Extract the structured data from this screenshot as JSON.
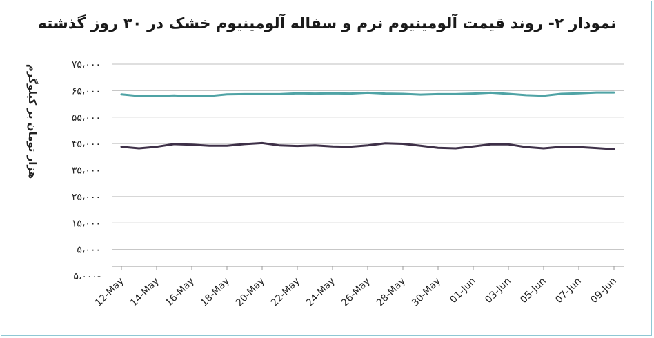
{
  "chart_data": {
    "type": "line",
    "title": "نمودار ۲- روند قیمت آلومینیوم نرم و سفاله آلومینیوم خشک در ۳۰ روز گذشته",
    "ylabel": "هزار تومان بر کیلوگرم",
    "xlabel": "",
    "ylim": [
      -5000,
      75000
    ],
    "y_ticks": [
      {
        "value": 75000,
        "label": "۷۵،۰۰۰"
      },
      {
        "value": 65000,
        "label": "۶۵،۰۰۰"
      },
      {
        "value": 55000,
        "label": "۵۵،۰۰۰"
      },
      {
        "value": 45000,
        "label": "۴۵،۰۰۰"
      },
      {
        "value": 35000,
        "label": "۳۵،۰۰۰"
      },
      {
        "value": 25000,
        "label": "۲۵،۰۰۰"
      },
      {
        "value": 15000,
        "label": "۱۵،۰۰۰"
      },
      {
        "value": 5000,
        "label": "۵،۰۰۰"
      },
      {
        "value": -5000,
        "label": "۵،۰۰۰-"
      }
    ],
    "x_tick_labels": [
      "12-May",
      "14-May",
      "16-May",
      "18-May",
      "20-May",
      "22-May",
      "24-May",
      "26-May",
      "28-May",
      "30-May",
      "01-Jun",
      "03-Jun",
      "05-Jun",
      "07-Jun",
      "09-Jun"
    ],
    "grid": true,
    "series": [
      {
        "color": "#4fa3a5",
        "values": [
          63600,
          63000,
          63000,
          63200,
          63000,
          63000,
          63600,
          63700,
          63700,
          63700,
          64000,
          63900,
          64000,
          63900,
          64200,
          63900,
          63800,
          63500,
          63700,
          63700,
          63900,
          64200,
          63800,
          63300,
          63100,
          63800,
          64000,
          64300,
          64300
        ]
      },
      {
        "color": "#3e3048",
        "values": [
          43800,
          43200,
          43800,
          44800,
          44600,
          44200,
          44200,
          44800,
          45200,
          44300,
          44100,
          44300,
          43900,
          43800,
          44300,
          45100,
          44900,
          44200,
          43400,
          43200,
          43900,
          44700,
          44700,
          43700,
          43200,
          43800,
          43700,
          43300,
          42900
        ]
      }
    ]
  }
}
